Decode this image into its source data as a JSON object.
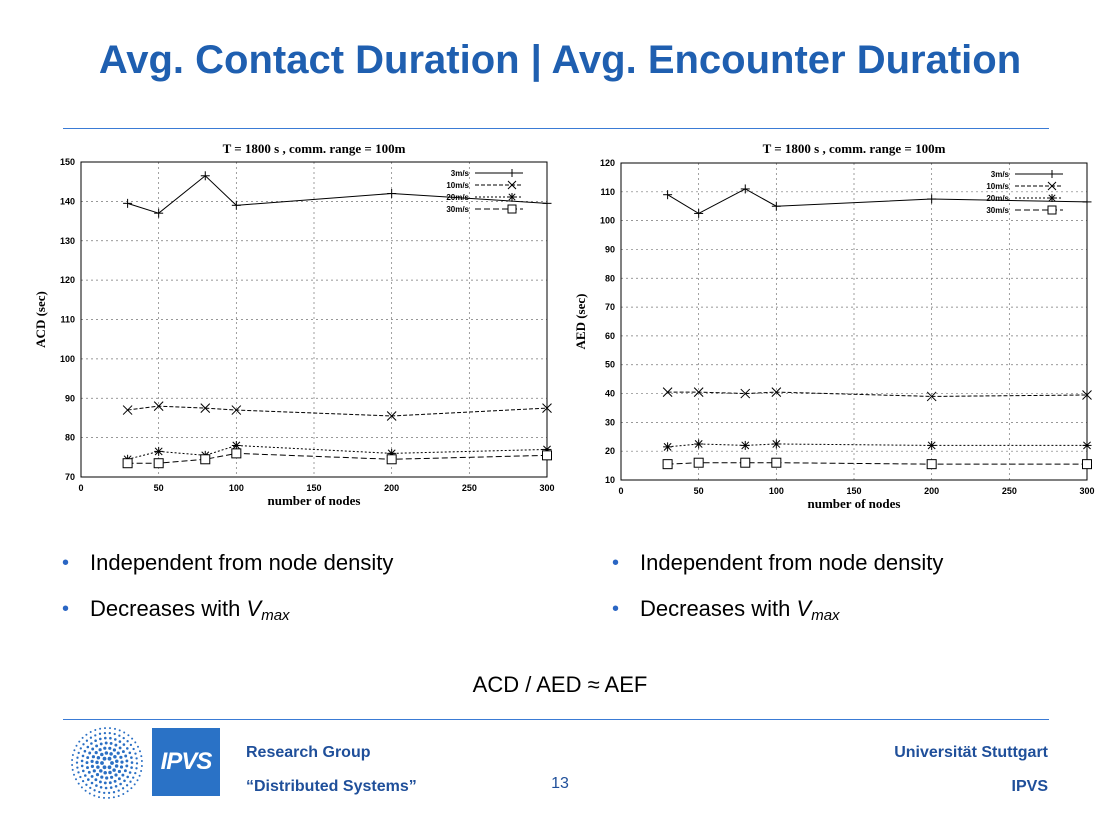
{
  "slide": {
    "title": "Avg. Contact Duration  | Avg. Encounter Duration",
    "formula": "ACD / AED ≈ AEF",
    "page_number": "13"
  },
  "left_bullets": [
    {
      "text": "Independent from node density"
    },
    {
      "text": "Decreases with ",
      "var": "V",
      "sub": "max"
    }
  ],
  "right_bullets": [
    {
      "text": "Independent from node density"
    },
    {
      "text": "Decreases with ",
      "var": "V",
      "sub": "max"
    }
  ],
  "footer": {
    "group_line1": "Research Group",
    "group_line2": "“Distributed Systems”",
    "uni_line1": "Universität Stuttgart",
    "uni_line2": "IPVS",
    "logo_text": "IPVS"
  },
  "chart_data": [
    {
      "type": "line",
      "title": "T = 1800 s , comm. range = 100m",
      "xlabel": "number of nodes",
      "ylabel": "ACD (sec)",
      "xlim": [
        0,
        300
      ],
      "ylim": [
        70,
        150
      ],
      "xticks": [
        0,
        50,
        100,
        150,
        200,
        250,
        300
      ],
      "yticks": [
        70,
        80,
        90,
        100,
        110,
        120,
        130,
        140,
        150
      ],
      "grid": true,
      "legend_position": "top-right",
      "series": [
        {
          "name": "3m/s",
          "marker": "plus",
          "dash": "none",
          "x": [
            30,
            50,
            80,
            100,
            200,
            300
          ],
          "y": [
            139.5,
            137,
            146.5,
            139,
            142,
            139.5
          ]
        },
        {
          "name": "10m/s",
          "marker": "x",
          "dash": "4,2",
          "x": [
            30,
            50,
            80,
            100,
            200,
            300
          ],
          "y": [
            87,
            88,
            87.5,
            87,
            85.5,
            87.5
          ]
        },
        {
          "name": "20m/s",
          "marker": "asterisk",
          "dash": "2,2",
          "x": [
            30,
            50,
            80,
            100,
            200,
            300
          ],
          "y": [
            74.5,
            76.5,
            75.5,
            78,
            76,
            77
          ]
        },
        {
          "name": "30m/s",
          "marker": "square",
          "dash": "6,3",
          "x": [
            30,
            50,
            80,
            100,
            200,
            300
          ],
          "y": [
            73.5,
            73.5,
            74.5,
            76,
            74.5,
            75.5
          ]
        }
      ]
    },
    {
      "type": "line",
      "title": "T = 1800 s , comm. range = 100m",
      "xlabel": "number of nodes",
      "ylabel": "AED (sec)",
      "xlim": [
        0,
        300
      ],
      "ylim": [
        10,
        120
      ],
      "xticks": [
        0,
        50,
        100,
        150,
        200,
        250,
        300
      ],
      "yticks": [
        10,
        20,
        30,
        40,
        50,
        60,
        70,
        80,
        90,
        100,
        110,
        120
      ],
      "grid": true,
      "legend_position": "top-right",
      "series": [
        {
          "name": "3m/s",
          "marker": "plus",
          "dash": "none",
          "x": [
            30,
            50,
            80,
            100,
            200,
            300
          ],
          "y": [
            109,
            102.5,
            111,
            105,
            107.5,
            106.5
          ]
        },
        {
          "name": "10m/s",
          "marker": "x",
          "dash": "4,2",
          "x": [
            30,
            50,
            80,
            100,
            200,
            300
          ],
          "y": [
            40.5,
            40.5,
            40,
            40.5,
            39,
            39.5
          ]
        },
        {
          "name": "20m/s",
          "marker": "asterisk",
          "dash": "2,2",
          "x": [
            30,
            50,
            80,
            100,
            200,
            300
          ],
          "y": [
            21.5,
            22.5,
            22,
            22.5,
            22,
            22
          ]
        },
        {
          "name": "30m/s",
          "marker": "square",
          "dash": "6,3",
          "x": [
            30,
            50,
            80,
            100,
            200,
            300
          ],
          "y": [
            15.5,
            16,
            16,
            16,
            15.5,
            15.5
          ]
        }
      ]
    }
  ]
}
